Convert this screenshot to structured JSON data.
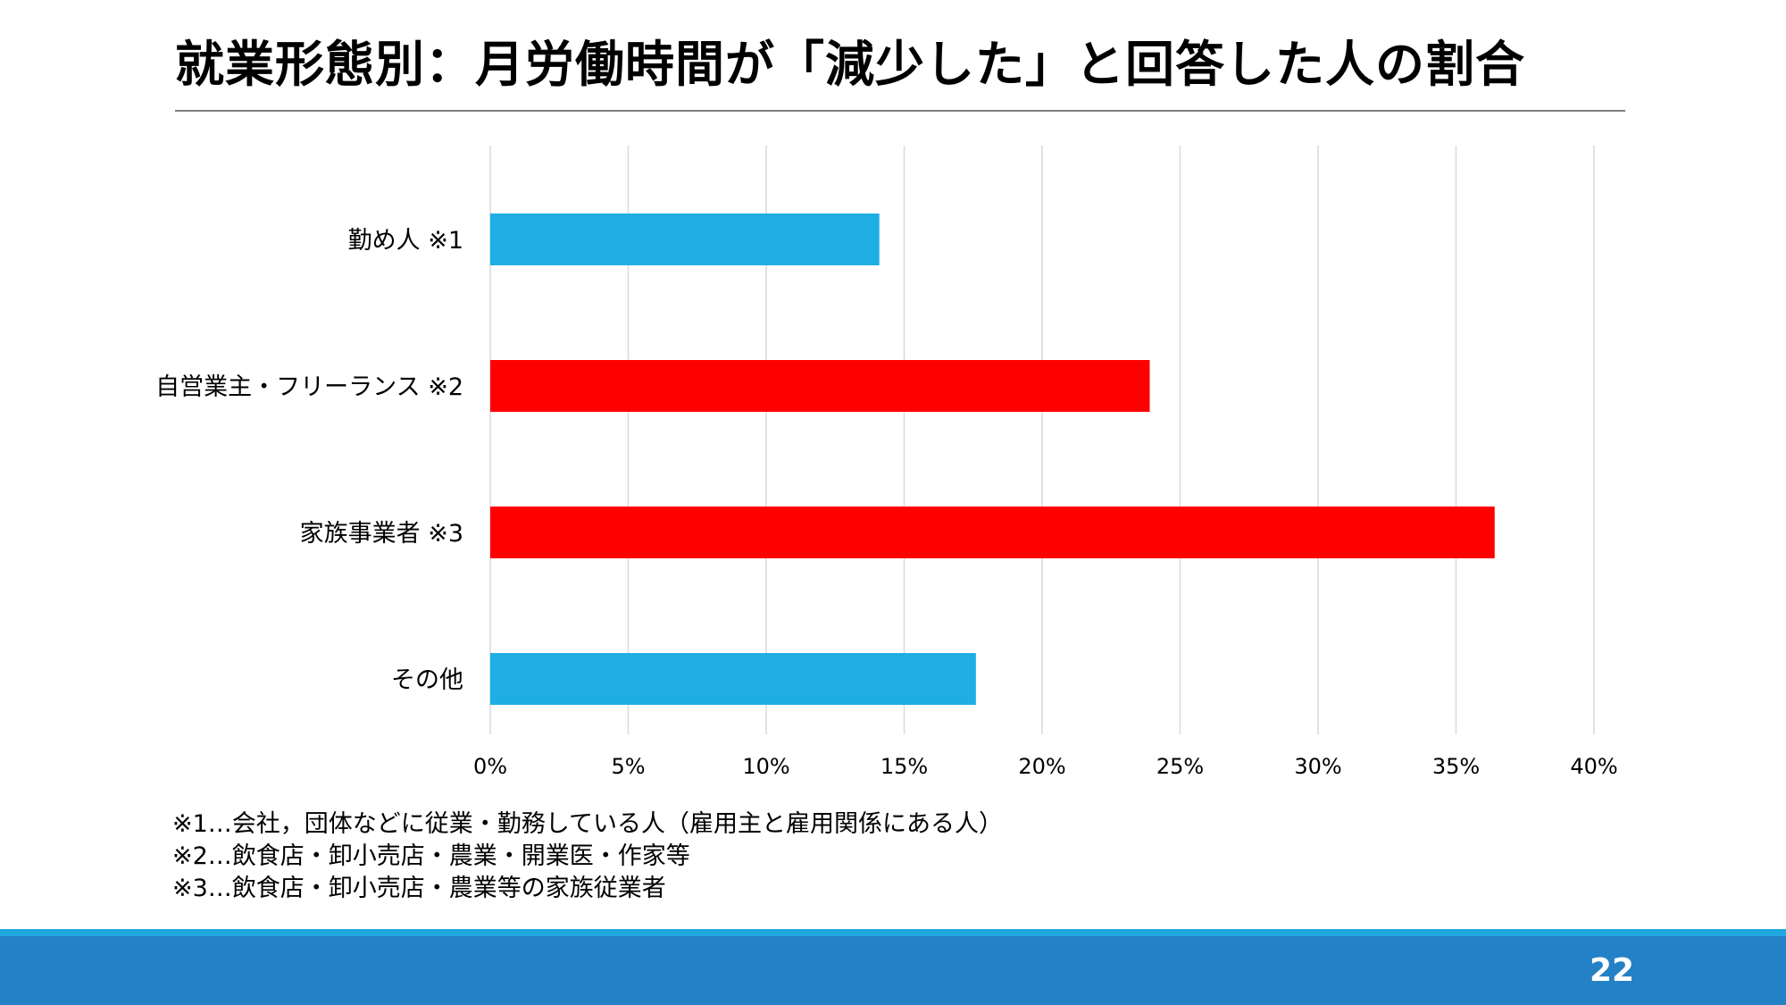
{
  "title": "就業形態別：月労働時間が「減少した」と回答した人の割合",
  "colors": {
    "accent_blue": "#1eaee4",
    "highlight_red": "#ff0000",
    "gridline": "#d9d9d9",
    "title_rule": "#7f7f7f",
    "footer_light": "#1fa8e0",
    "footer_dark": "#2481c5"
  },
  "chart_data": {
    "type": "bar",
    "orientation": "horizontal",
    "categories": [
      "勤め人 ※1",
      "自営業主・フリーランス ※2",
      "家族事業者 ※3",
      "その他"
    ],
    "values": [
      14.1,
      23.9,
      36.4,
      17.6
    ],
    "bar_colors": [
      "#1eaee4",
      "#ff0000",
      "#ff0000",
      "#1eaee4"
    ],
    "xlim": [
      0,
      40
    ],
    "xticks": [
      0,
      5,
      10,
      15,
      20,
      25,
      30,
      35,
      40
    ],
    "xtick_labels": [
      "0%",
      "5%",
      "10%",
      "15%",
      "20%",
      "25%",
      "30%",
      "35%",
      "40%"
    ],
    "grid": "vertical",
    "xlabel": "",
    "ylabel": ""
  },
  "footnotes": [
    "※1…会社，団体などに従業・勤務している人（雇用主と雇用関係にある人）",
    "※2…飲食店・卸小売店・農業・開業医・作家等",
    "※3…飲食店・卸小売店・農業等の家族従業者"
  ],
  "page_number": "22"
}
